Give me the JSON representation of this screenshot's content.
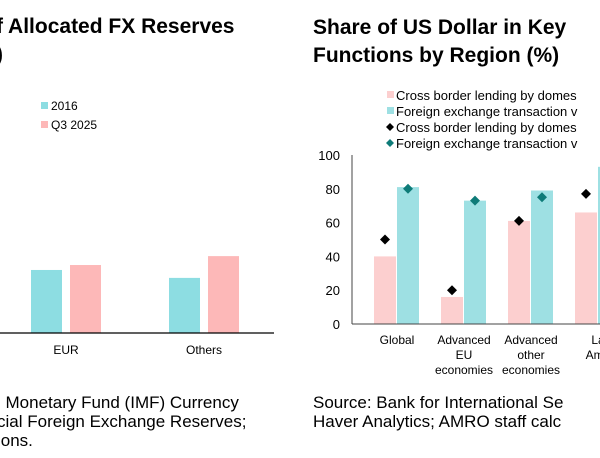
{
  "chart_data": [
    {
      "type": "bar",
      "title_lines": [
        "f Allocated FX Reserves",
        ")"
      ],
      "categories": [
        "EUR",
        "Others"
      ],
      "series": [
        {
          "name": "2016",
          "color": "#8ddde2",
          "values": [
            19.1,
            16.7
          ]
        },
        {
          "name": "Q3 2025",
          "color": "#fdb8b8",
          "values": [
            20.6,
            23.3
          ]
        }
      ],
      "legend": "top-left",
      "source_lines": [
        "l Monetary Fund (IMF) Currency",
        "cial Foreign Exchange Reserves;",
        "ions."
      ]
    },
    {
      "type": "bar",
      "title_lines": [
        "Share of US Dollar in Key",
        "Functions by Region (%)"
      ],
      "categories": [
        [
          "Global"
        ],
        [
          "Advanced",
          "EU",
          "economies"
        ],
        [
          "Advanced",
          "other",
          "economies"
        ],
        [
          "La",
          "Ame"
        ]
      ],
      "ylim": [
        0,
        100
      ],
      "yticks": [
        "0",
        "20",
        "40",
        "60",
        "80",
        "100"
      ],
      "series": [
        {
          "name": "Cross border lending by domes",
          "kind": "bar",
          "color": "#fccfcf",
          "values": [
            40,
            16,
            61,
            66
          ]
        },
        {
          "name": "Foreign exchange transaction v",
          "kind": "bar",
          "color": "#9ee0e3",
          "values": [
            81,
            73,
            79,
            93
          ]
        },
        {
          "name": "Cross border lending by domes",
          "kind": "diamond",
          "color": "#000000",
          "values": [
            50,
            20,
            61,
            77
          ]
        },
        {
          "name": "Foreign exchange transaction v",
          "kind": "diamond",
          "color": "#0e7b78",
          "values": [
            80,
            73,
            75,
            null
          ]
        }
      ],
      "legend": "top",
      "source_lines": [
        "Source: Bank for International Se",
        "Haver Analytics; AMRO staff calc"
      ]
    }
  ]
}
